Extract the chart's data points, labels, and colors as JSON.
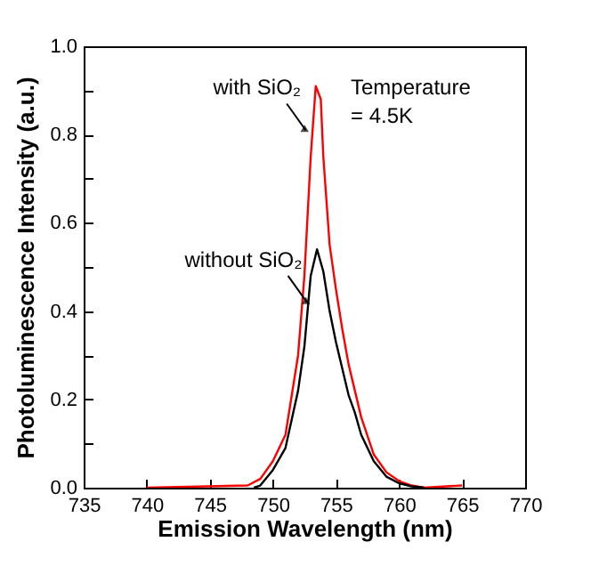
{
  "chart_data": {
    "type": "line",
    "xlabel": "Emission Wavelength (nm)",
    "ylabel": "Photoluminescence Intensity (a.u.)",
    "xlim": [
      735,
      770
    ],
    "xticks": [
      735,
      740,
      745,
      750,
      755,
      760,
      765,
      770
    ],
    "ylim": [
      0,
      1
    ],
    "yticks": [
      {
        "value": 0,
        "label": "0.0"
      },
      {
        "value": 0.1,
        "label": null
      },
      0.2,
      {
        "value": 0.3,
        "label": null
      },
      0.4,
      {
        "value": 0.5,
        "label": null
      },
      0.6,
      {
        "value": 0.7,
        "label": null
      },
      0.8,
      {
        "value": 0.9,
        "label": null
      },
      {
        "value": 1,
        "label": "1.0"
      }
    ],
    "grid": false,
    "line_style": "solid",
    "marker": "none",
    "series": [
      {
        "color": "#ff0000",
        "x": [
          740,
          748,
          749,
          750,
          751,
          752,
          752.5,
          753,
          753.4,
          753.8,
          754,
          754.5,
          755,
          755.5,
          756,
          756.5,
          757,
          758,
          759,
          760,
          761,
          762,
          765
        ],
        "values": [
          0,
          0.005,
          0.02,
          0.06,
          0.12,
          0.3,
          0.48,
          0.75,
          0.91,
          0.88,
          0.75,
          0.55,
          0.45,
          0.36,
          0.28,
          0.22,
          0.16,
          0.075,
          0.035,
          0.015,
          0.005,
          0,
          0.005
        ]
      },
      {
        "color": "#000000",
        "x": [
          748.5,
          749,
          750,
          751,
          752,
          752.5,
          753,
          753.5,
          754,
          754.5,
          755,
          755.5,
          756,
          756.5,
          757,
          758,
          759,
          760,
          761,
          762
        ],
        "values": [
          0,
          0.005,
          0.04,
          0.09,
          0.22,
          0.32,
          0.48,
          0.54,
          0.49,
          0.4,
          0.33,
          0.27,
          0.21,
          0.17,
          0.12,
          0.06,
          0.025,
          0.01,
          0.003,
          0
        ]
      }
    ],
    "annotations": [
      {
        "text": "with SiO₂",
        "x": 752.6,
        "y": 0.81
      },
      {
        "text": "without SiO₂",
        "x": 752.7,
        "y": 0.42
      },
      "Temperature\n= 4.5K"
    ]
  }
}
